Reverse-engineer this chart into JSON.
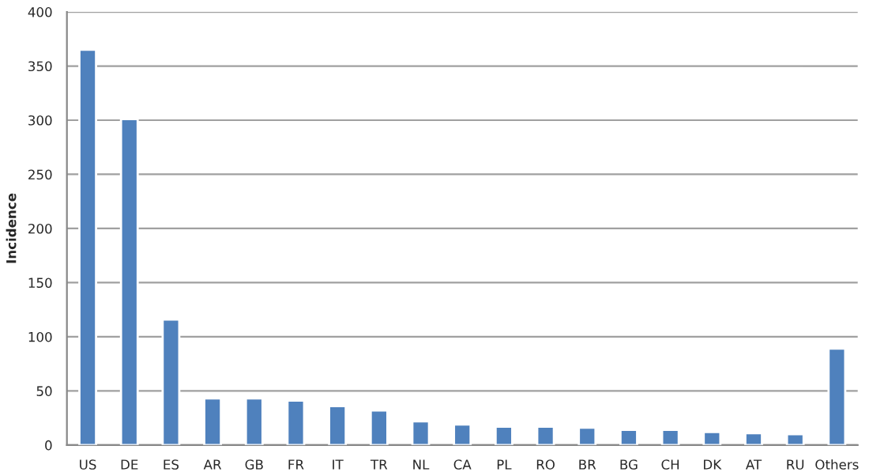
{
  "chart_data": {
    "type": "bar",
    "ylabel": "Incidence",
    "categories": [
      "US",
      "DE",
      "ES",
      "AR",
      "GB",
      "FR",
      "IT",
      "TR",
      "NL",
      "CA",
      "PL",
      "RO",
      "BR",
      "BG",
      "CH",
      "DK",
      "AT",
      "RU",
      "Others"
    ],
    "values": [
      365,
      301,
      116,
      43,
      43,
      41,
      36,
      32,
      22,
      19,
      17,
      17,
      16,
      14,
      14,
      12,
      11,
      10,
      89
    ],
    "color": "#4f81bd",
    "ylim": [
      0,
      400
    ],
    "yticks": [
      0,
      50,
      100,
      150,
      200,
      250,
      300,
      350,
      400
    ],
    "grid": "y"
  }
}
